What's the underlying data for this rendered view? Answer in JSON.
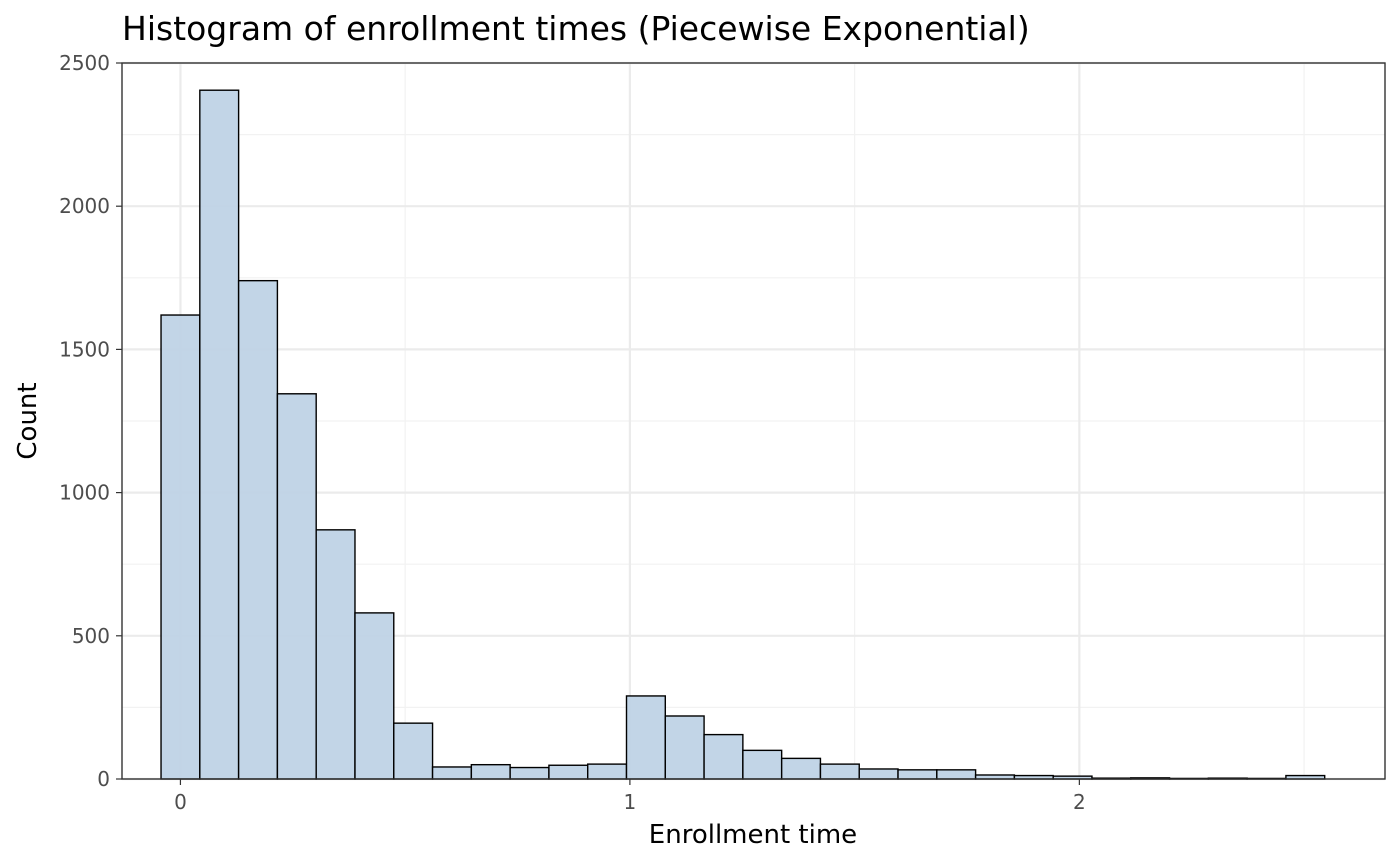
{
  "chart_data": {
    "type": "bar",
    "title": "Histogram of enrollment times (Piecewise Exponential)",
    "xlabel": "Enrollment time",
    "ylabel": "Count",
    "xlim": [
      -0.13,
      2.68
    ],
    "ylim": [
      0,
      2500
    ],
    "x_ticks": [
      0,
      1,
      2
    ],
    "y_ticks": [
      0,
      500,
      1000,
      1500,
      2000,
      2500
    ],
    "x_tick_labels": [
      "0",
      "1",
      "2"
    ],
    "y_tick_labels": [
      "0",
      "500",
      "1000",
      "1500",
      "2000",
      "2500"
    ],
    "bin_width": 0.0863,
    "bin_centers": [
      0.0,
      0.0863,
      0.1726,
      0.2589,
      0.3452,
      0.4315,
      0.5178,
      0.6041,
      0.6904,
      0.7767,
      0.863,
      0.9493,
      1.0356,
      1.1219,
      1.2082,
      1.2945,
      1.3808,
      1.4671,
      1.5534,
      1.6397,
      1.726,
      1.8123,
      1.8986,
      1.9849,
      2.0712,
      2.1575,
      2.2438,
      2.3301,
      2.4164,
      2.5027
    ],
    "values": [
      1620,
      2405,
      1740,
      1345,
      870,
      580,
      195,
      42,
      50,
      40,
      48,
      52,
      290,
      220,
      155,
      100,
      72,
      52,
      35,
      32,
      32,
      14,
      12,
      10,
      3,
      4,
      2,
      3,
      2,
      12
    ],
    "bar_fill": "#bfd3e6",
    "bar_outline": "#000000",
    "grid": true,
    "legend": "none"
  }
}
